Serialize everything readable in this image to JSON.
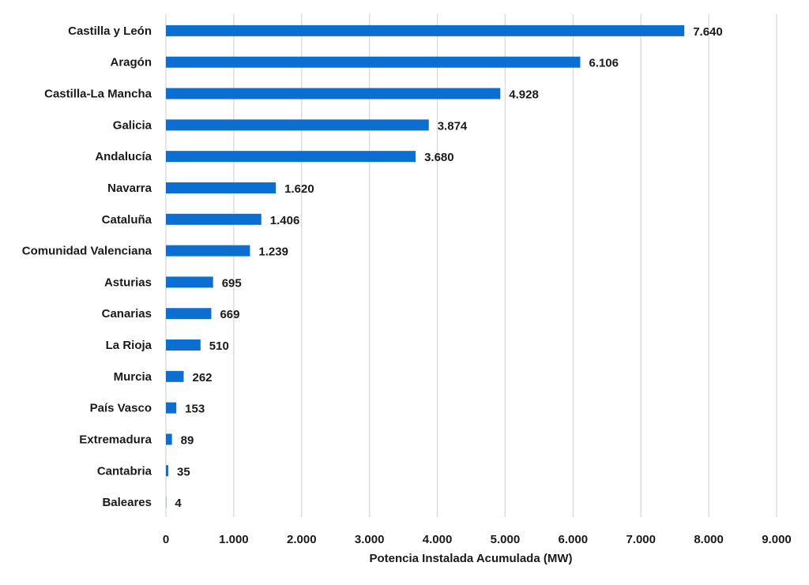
{
  "chart_data": {
    "type": "bar",
    "orientation": "horizontal",
    "categories": [
      "Castilla y León",
      "Aragón",
      "Castilla-La Mancha",
      "Galicia",
      "Andalucía",
      "Navarra",
      "Cataluña",
      "Comunidad Valenciana",
      "Asturias",
      "Canarias",
      "La Rioja",
      "Murcia",
      "País Vasco",
      "Extremadura",
      "Cantabria",
      "Baleares"
    ],
    "values": [
      7640,
      6106,
      4928,
      3874,
      3680,
      1620,
      1406,
      1239,
      695,
      669,
      510,
      262,
      153,
      89,
      35,
      4
    ],
    "value_labels": [
      "7.640",
      "6.106",
      "4.928",
      "3.874",
      "3.680",
      "1.620",
      "1.406",
      "1.239",
      "695",
      "669",
      "510",
      "262",
      "153",
      "89",
      "35",
      "4"
    ],
    "xlim": [
      0,
      9000
    ],
    "xticks": [
      0,
      1000,
      2000,
      3000,
      4000,
      5000,
      6000,
      7000,
      8000,
      9000
    ],
    "xtick_labels": [
      "0",
      "1.000",
      "2.000",
      "3.000",
      "4.000",
      "5.000",
      "6.000",
      "7.000",
      "8.000",
      "9.000"
    ],
    "xlabel": "Potencia Instalada Acumulada (MW)",
    "ylabel": "",
    "title": "",
    "grid": "vertical",
    "legend": "none",
    "bar_color": "#0a6fd0",
    "grid_color": "#d9d9d9"
  }
}
